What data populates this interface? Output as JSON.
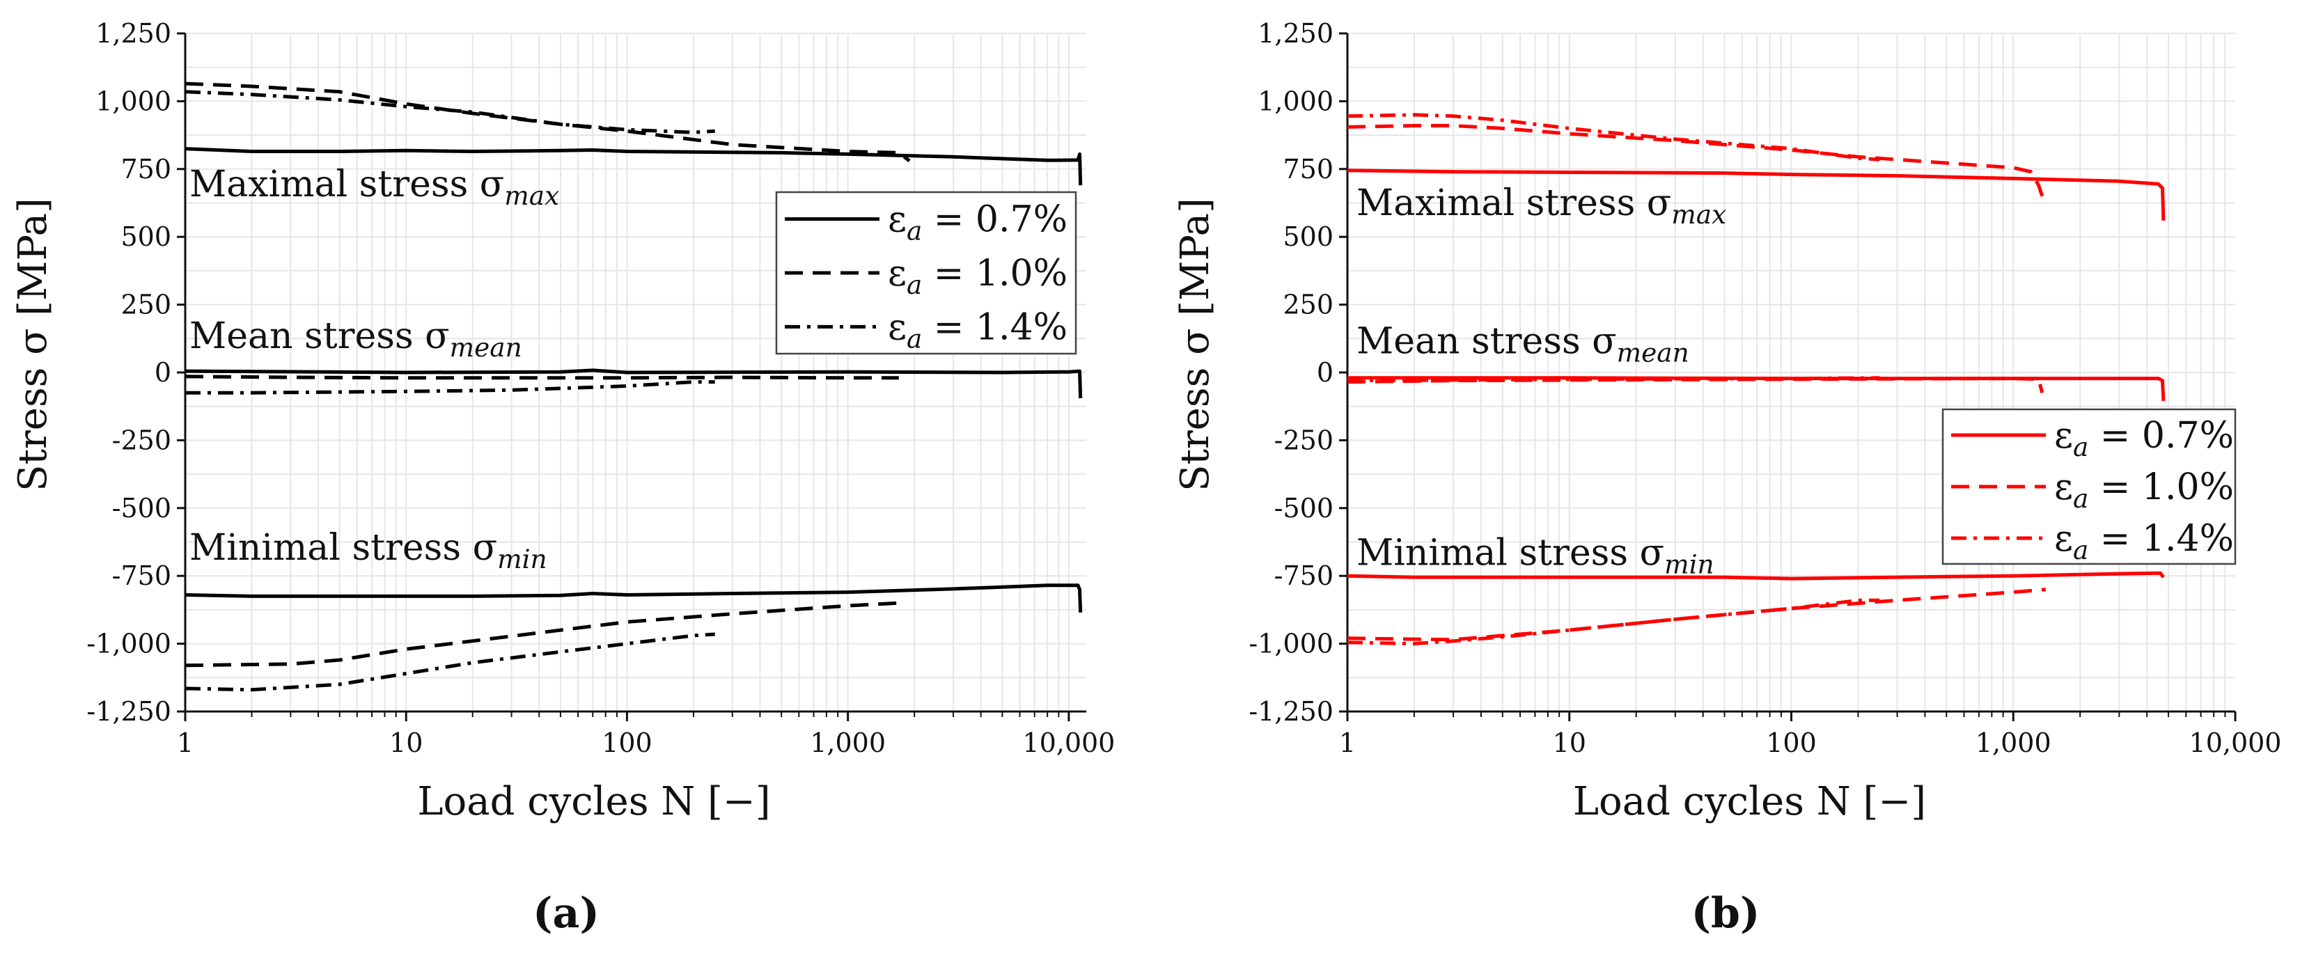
{
  "chart_data": [
    {
      "type": "line",
      "panel_label": "(a)",
      "color": "#000000",
      "xscale": "log",
      "xlim": [
        1,
        12000
      ],
      "ylim": [
        -1250,
        1250
      ],
      "xticks": [
        1,
        10,
        100,
        1000,
        10000
      ],
      "xtick_labels": [
        "1",
        "10",
        "100",
        "1,000",
        "10,000"
      ],
      "yticks": [
        1250,
        1000,
        750,
        500,
        250,
        0,
        -250,
        -500,
        -750,
        -1000,
        -1250
      ],
      "ytick_labels": [
        "1,250",
        "1,000",
        "750",
        "500",
        "250",
        "0",
        "-250",
        "-500",
        "-750",
        "-1,000",
        "-1,250"
      ],
      "xlabel": "Load cycles N [−]",
      "ylabel": "Stress σ [MPa]",
      "annotations": [
        {
          "text": "Maximal stress σ",
          "sub": "max",
          "x": 1,
          "y": 650
        },
        {
          "text": "Mean stress σ",
          "sub": "mean",
          "x": 1,
          "y": 90
        },
        {
          "text": "Minimal stress σ",
          "sub": "min",
          "x": 1,
          "y": -690
        }
      ],
      "legend": {
        "position": "upper-right",
        "entries": [
          {
            "label": "ε",
            "sub": "a",
            "value": "= 0.7%",
            "style": "solid"
          },
          {
            "label": "ε",
            "sub": "a",
            "value": "= 1.0%",
            "style": "dashed"
          },
          {
            "label": "ε",
            "sub": "a",
            "value": "= 1.4%",
            "style": "dashdot"
          }
        ]
      },
      "series": [
        {
          "name": "0.7% max",
          "style": "solid",
          "points": [
            [
              1,
              825
            ],
            [
              2,
              815
            ],
            [
              5,
              815
            ],
            [
              10,
              818
            ],
            [
              20,
              815
            ],
            [
              50,
              818
            ],
            [
              70,
              820
            ],
            [
              100,
              815
            ],
            [
              500,
              810
            ],
            [
              1000,
              805
            ],
            [
              3000,
              795
            ],
            [
              8000,
              782
            ],
            [
              11000,
              783
            ],
            [
              11200,
              805
            ],
            [
              11300,
              690
            ]
          ]
        },
        {
          "name": "0.7% mean",
          "style": "solid",
          "points": [
            [
              1,
              5
            ],
            [
              10,
              0
            ],
            [
              50,
              2
            ],
            [
              70,
              8
            ],
            [
              100,
              0
            ],
            [
              1000,
              2
            ],
            [
              5000,
              0
            ],
            [
              10000,
              2
            ],
            [
              11200,
              5
            ],
            [
              11300,
              -95
            ]
          ]
        },
        {
          "name": "0.7% min",
          "style": "solid",
          "points": [
            [
              1,
              -820
            ],
            [
              2,
              -825
            ],
            [
              5,
              -825
            ],
            [
              10,
              -825
            ],
            [
              20,
              -825
            ],
            [
              50,
              -822
            ],
            [
              70,
              -815
            ],
            [
              100,
              -820
            ],
            [
              300,
              -815
            ],
            [
              1000,
              -810
            ],
            [
              3000,
              -798
            ],
            [
              8000,
              -785
            ],
            [
              11000,
              -785
            ],
            [
              11200,
              -800
            ],
            [
              11300,
              -885
            ]
          ]
        },
        {
          "name": "1.0% max",
          "style": "dashed",
          "points": [
            [
              1,
              1065
            ],
            [
              2,
              1055
            ],
            [
              5,
              1035
            ],
            [
              10,
              990
            ],
            [
              20,
              955
            ],
            [
              50,
              915
            ],
            [
              100,
              890
            ],
            [
              300,
              840
            ],
            [
              1000,
              815
            ],
            [
              1700,
              810
            ],
            [
              1900,
              780
            ]
          ]
        },
        {
          "name": "1.0% mean",
          "style": "dashed",
          "points": [
            [
              1,
              -15
            ],
            [
              3,
              -18
            ],
            [
              10,
              -20
            ],
            [
              30,
              -20
            ],
            [
              100,
              -20
            ],
            [
              300,
              -18
            ],
            [
              1000,
              -20
            ],
            [
              1700,
              -20
            ]
          ]
        },
        {
          "name": "1.0% min",
          "style": "dashed",
          "points": [
            [
              1,
              -1080
            ],
            [
              3,
              -1075
            ],
            [
              5,
              -1060
            ],
            [
              10,
              -1020
            ],
            [
              20,
              -990
            ],
            [
              50,
              -950
            ],
            [
              100,
              -920
            ],
            [
              300,
              -890
            ],
            [
              1000,
              -860
            ],
            [
              1700,
              -850
            ]
          ]
        },
        {
          "name": "1.4% max",
          "style": "dashdot",
          "points": [
            [
              1,
              1035
            ],
            [
              2,
              1025
            ],
            [
              5,
              1005
            ],
            [
              10,
              980
            ],
            [
              20,
              960
            ],
            [
              50,
              915
            ],
            [
              100,
              895
            ],
            [
              200,
              885
            ],
            [
              250,
              890
            ]
          ]
        },
        {
          "name": "1.4% mean",
          "style": "dashdot",
          "points": [
            [
              1,
              -75
            ],
            [
              2,
              -75
            ],
            [
              5,
              -72
            ],
            [
              10,
              -70
            ],
            [
              30,
              -65
            ],
            [
              100,
              -50
            ],
            [
              200,
              -35
            ],
            [
              250,
              -35
            ]
          ]
        },
        {
          "name": "1.4% min",
          "style": "dashdot",
          "points": [
            [
              1,
              -1165
            ],
            [
              2,
              -1170
            ],
            [
              5,
              -1150
            ],
            [
              10,
              -1110
            ],
            [
              20,
              -1070
            ],
            [
              50,
              -1030
            ],
            [
              100,
              -1000
            ],
            [
              200,
              -970
            ],
            [
              250,
              -965
            ]
          ]
        }
      ]
    },
    {
      "type": "line",
      "panel_label": "(b)",
      "color": "#ff0000",
      "xscale": "log",
      "xlim": [
        1,
        10000
      ],
      "ylim": [
        -1250,
        1250
      ],
      "xticks": [
        1,
        10,
        100,
        1000,
        10000
      ],
      "xtick_labels": [
        "1",
        "10",
        "100",
        "1,000",
        "10,000"
      ],
      "yticks": [
        1250,
        1000,
        750,
        500,
        250,
        0,
        -250,
        -500,
        -750,
        -1000,
        -1250
      ],
      "ytick_labels": [
        "1,250",
        "1,000",
        "750",
        "500",
        "250",
        "0",
        "-250",
        "-500",
        "-750",
        "-1,000",
        "-1,250"
      ],
      "xlabel": "Load cycles N [−]",
      "ylabel": "Stress σ [MPa]",
      "annotations": [
        {
          "text": "Maximal stress σ",
          "sub": "max",
          "x": 1,
          "y": 580
        },
        {
          "text": "Mean stress σ",
          "sub": "mean",
          "x": 1,
          "y": 70
        },
        {
          "text": "Minimal stress σ",
          "sub": "min",
          "x": 1,
          "y": -710
        }
      ],
      "legend": {
        "position": "middle-right",
        "entries": [
          {
            "label": "ε",
            "sub": "a",
            "value": "= 0.7%",
            "style": "solid"
          },
          {
            "label": "ε",
            "sub": "a",
            "value": "= 1.0%",
            "style": "dashed"
          },
          {
            "label": "ε",
            "sub": "a",
            "value": "= 1.4%",
            "style": "dashdot"
          }
        ]
      },
      "series": [
        {
          "name": "0.7% max",
          "style": "solid",
          "points": [
            [
              1,
              745
            ],
            [
              3,
              740
            ],
            [
              10,
              738
            ],
            [
              50,
              735
            ],
            [
              100,
              730
            ],
            [
              300,
              725
            ],
            [
              1000,
              715
            ],
            [
              3000,
              705
            ],
            [
              4500,
              695
            ],
            [
              4700,
              680
            ],
            [
              4750,
              560
            ]
          ]
        },
        {
          "name": "0.7% mean",
          "style": "solid",
          "points": [
            [
              1,
              -20
            ],
            [
              10,
              -20
            ],
            [
              100,
              -22
            ],
            [
              1000,
              -22
            ],
            [
              4500,
              -22
            ],
            [
              4700,
              -30
            ],
            [
              4750,
              -105
            ]
          ]
        },
        {
          "name": "0.7% min",
          "style": "solid",
          "points": [
            [
              1,
              -750
            ],
            [
              2,
              -755
            ],
            [
              10,
              -755
            ],
            [
              50,
              -755
            ],
            [
              100,
              -760
            ],
            [
              300,
              -755
            ],
            [
              1000,
              -750
            ],
            [
              3000,
              -742
            ],
            [
              4600,
              -740
            ],
            [
              4750,
              -755
            ]
          ]
        },
        {
          "name": "1.0% max",
          "style": "dashed",
          "points": [
            [
              1,
              905
            ],
            [
              2,
              910
            ],
            [
              3,
              910
            ],
            [
              5,
              900
            ],
            [
              10,
              880
            ],
            [
              30,
              855
            ],
            [
              100,
              820
            ],
            [
              200,
              795
            ],
            [
              300,
              785
            ],
            [
              1000,
              755
            ],
            [
              1200,
              740
            ],
            [
              1300,
              690
            ],
            [
              1350,
              650
            ]
          ]
        },
        {
          "name": "1.0% mean",
          "style": "dashed",
          "points": [
            [
              1,
              -35
            ],
            [
              3,
              -30
            ],
            [
              10,
              -28
            ],
            [
              100,
              -25
            ],
            [
              1000,
              -22
            ],
            [
              1300,
              -25
            ],
            [
              1350,
              -75
            ]
          ]
        },
        {
          "name": "1.0% min",
          "style": "dashed",
          "points": [
            [
              1,
              -980
            ],
            [
              3,
              -985
            ],
            [
              10,
              -950
            ],
            [
              30,
              -910
            ],
            [
              100,
              -870
            ],
            [
              300,
              -840
            ],
            [
              1000,
              -810
            ],
            [
              1400,
              -800
            ]
          ]
        },
        {
          "name": "1.4% max",
          "style": "dashdot",
          "points": [
            [
              1,
              945
            ],
            [
              2,
              950
            ],
            [
              3,
              945
            ],
            [
              5,
              930
            ],
            [
              10,
              900
            ],
            [
              30,
              860
            ],
            [
              100,
              825
            ],
            [
              200,
              790
            ],
            [
              250,
              785
            ]
          ]
        },
        {
          "name": "1.4% mean",
          "style": "dashdot",
          "points": [
            [
              1,
              -30
            ],
            [
              3,
              -28
            ],
            [
              10,
              -25
            ],
            [
              100,
              -22
            ],
            [
              250,
              -20
            ]
          ]
        },
        {
          "name": "1.4% min",
          "style": "dashdot",
          "points": [
            [
              1,
              -995
            ],
            [
              2,
              -1000
            ],
            [
              3,
              -990
            ],
            [
              5,
              -975
            ],
            [
              10,
              -950
            ],
            [
              30,
              -910
            ],
            [
              100,
              -870
            ],
            [
              200,
              -840
            ],
            [
              250,
              -840
            ]
          ]
        }
      ]
    }
  ]
}
